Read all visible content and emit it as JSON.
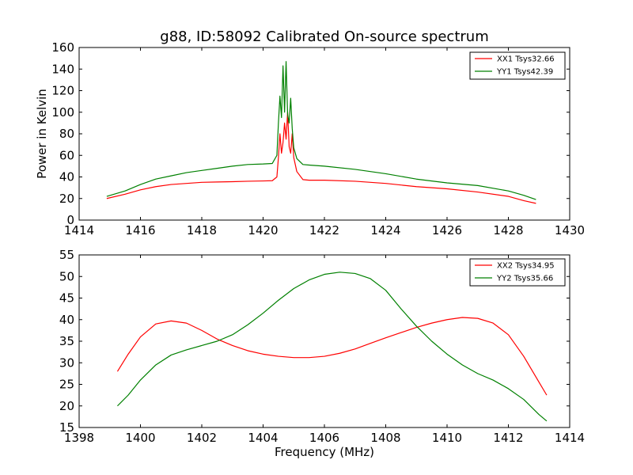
{
  "chart_data": [
    {
      "type": "line",
      "title": "g88, ID:58092 Calibrated On-source spectrum",
      "xlabel": "",
      "ylabel": "Power in Kelvin",
      "xlim": [
        1414,
        1430
      ],
      "ylim": [
        0,
        160
      ],
      "xticks": [
        1414,
        1416,
        1418,
        1420,
        1422,
        1424,
        1426,
        1428,
        1430
      ],
      "yticks": [
        0,
        20,
        40,
        60,
        80,
        100,
        120,
        140,
        160
      ],
      "legend_position": "top-right",
      "series": [
        {
          "name": "XX1 Tsys32.66",
          "color": "#ff0000",
          "points": [
            [
              1414.9,
              20
            ],
            [
              1415.5,
              24
            ],
            [
              1416,
              28
            ],
            [
              1416.5,
              31
            ],
            [
              1417,
              33
            ],
            [
              1417.5,
              34
            ],
            [
              1418,
              35
            ],
            [
              1418.5,
              35.3
            ],
            [
              1419,
              35.6
            ],
            [
              1419.5,
              36
            ],
            [
              1420,
              36.3
            ],
            [
              1420.3,
              36.5
            ],
            [
              1420.45,
              40
            ],
            [
              1420.5,
              58
            ],
            [
              1420.55,
              80
            ],
            [
              1420.6,
              62
            ],
            [
              1420.65,
              72
            ],
            [
              1420.7,
              90
            ],
            [
              1420.75,
              75
            ],
            [
              1420.8,
              100
            ],
            [
              1420.85,
              68
            ],
            [
              1420.9,
              62
            ],
            [
              1420.95,
              80
            ],
            [
              1421.0,
              58
            ],
            [
              1421.1,
              45
            ],
            [
              1421.3,
              37.5
            ],
            [
              1421.5,
              37
            ],
            [
              1422,
              37
            ],
            [
              1423,
              36
            ],
            [
              1424,
              34
            ],
            [
              1425,
              31
            ],
            [
              1426,
              29
            ],
            [
              1427,
              26
            ],
            [
              1428,
              22
            ],
            [
              1428.5,
              18
            ],
            [
              1428.9,
              15.5
            ]
          ]
        },
        {
          "name": "YY1 Tsys42.39",
          "color": "#008000",
          "points": [
            [
              1414.9,
              22
            ],
            [
              1415.5,
              27
            ],
            [
              1416,
              33
            ],
            [
              1416.5,
              38
            ],
            [
              1417,
              41
            ],
            [
              1417.5,
              44
            ],
            [
              1418,
              46
            ],
            [
              1418.5,
              48
            ],
            [
              1419,
              50
            ],
            [
              1419.5,
              51.5
            ],
            [
              1420,
              52
            ],
            [
              1420.3,
              52.5
            ],
            [
              1420.45,
              60
            ],
            [
              1420.5,
              90
            ],
            [
              1420.55,
              115
            ],
            [
              1420.6,
              95
            ],
            [
              1420.65,
              143
            ],
            [
              1420.7,
              100
            ],
            [
              1420.75,
              147
            ],
            [
              1420.8,
              98
            ],
            [
              1420.85,
              90
            ],
            [
              1420.9,
              113
            ],
            [
              1420.95,
              85
            ],
            [
              1421.0,
              67
            ],
            [
              1421.1,
              57
            ],
            [
              1421.3,
              51.5
            ],
            [
              1421.5,
              51
            ],
            [
              1422,
              50
            ],
            [
              1423,
              47
            ],
            [
              1424,
              43
            ],
            [
              1425,
              38
            ],
            [
              1426,
              34.5
            ],
            [
              1427,
              32
            ],
            [
              1428,
              27
            ],
            [
              1428.5,
              23
            ],
            [
              1428.9,
              19
            ]
          ]
        }
      ]
    },
    {
      "type": "line",
      "title": "",
      "xlabel": "Frequency (MHz)",
      "ylabel": "",
      "xlim": [
        1398,
        1414
      ],
      "ylim": [
        15,
        55
      ],
      "xticks": [
        1398,
        1400,
        1402,
        1404,
        1406,
        1408,
        1410,
        1412,
        1414
      ],
      "yticks": [
        15,
        20,
        25,
        30,
        35,
        40,
        45,
        50,
        55
      ],
      "legend_position": "top-right",
      "series": [
        {
          "name": "XX2 Tsys34.95",
          "color": "#ff0000",
          "points": [
            [
              1399.25,
              28
            ],
            [
              1399.6,
              32
            ],
            [
              1400,
              36
            ],
            [
              1400.5,
              39
            ],
            [
              1401,
              39.7
            ],
            [
              1401.5,
              39.2
            ],
            [
              1402,
              37.5
            ],
            [
              1402.5,
              35.5
            ],
            [
              1403,
              34
            ],
            [
              1403.5,
              32.8
            ],
            [
              1404,
              32
            ],
            [
              1404.5,
              31.5
            ],
            [
              1405,
              31.2
            ],
            [
              1405.5,
              31.2
            ],
            [
              1406,
              31.5
            ],
            [
              1406.5,
              32.2
            ],
            [
              1407,
              33.2
            ],
            [
              1407.5,
              34.5
            ],
            [
              1408,
              35.8
            ],
            [
              1408.5,
              37
            ],
            [
              1409,
              38.2
            ],
            [
              1409.5,
              39.2
            ],
            [
              1410,
              40
            ],
            [
              1410.5,
              40.5
            ],
            [
              1411,
              40.3
            ],
            [
              1411.5,
              39.2
            ],
            [
              1412,
              36.5
            ],
            [
              1412.5,
              31.5
            ],
            [
              1413,
              25.5
            ],
            [
              1413.25,
              22.5
            ]
          ]
        },
        {
          "name": "YY2 Tsys35.66",
          "color": "#008000",
          "points": [
            [
              1399.25,
              20
            ],
            [
              1399.6,
              22.5
            ],
            [
              1400,
              26
            ],
            [
              1400.5,
              29.5
            ],
            [
              1401,
              31.8
            ],
            [
              1401.5,
              33
            ],
            [
              1402,
              34
            ],
            [
              1402.5,
              35
            ],
            [
              1403,
              36.5
            ],
            [
              1403.5,
              38.8
            ],
            [
              1404,
              41.5
            ],
            [
              1404.5,
              44.5
            ],
            [
              1405,
              47.2
            ],
            [
              1405.5,
              49.2
            ],
            [
              1406,
              50.5
            ],
            [
              1406.5,
              51
            ],
            [
              1407,
              50.7
            ],
            [
              1407.5,
              49.5
            ],
            [
              1408,
              46.8
            ],
            [
              1408.5,
              42.5
            ],
            [
              1409,
              38.5
            ],
            [
              1409.5,
              35
            ],
            [
              1410,
              32
            ],
            [
              1410.5,
              29.5
            ],
            [
              1411,
              27.5
            ],
            [
              1411.5,
              26
            ],
            [
              1412,
              24
            ],
            [
              1412.5,
              21.5
            ],
            [
              1413,
              18
            ],
            [
              1413.25,
              16.5
            ]
          ]
        }
      ]
    }
  ]
}
